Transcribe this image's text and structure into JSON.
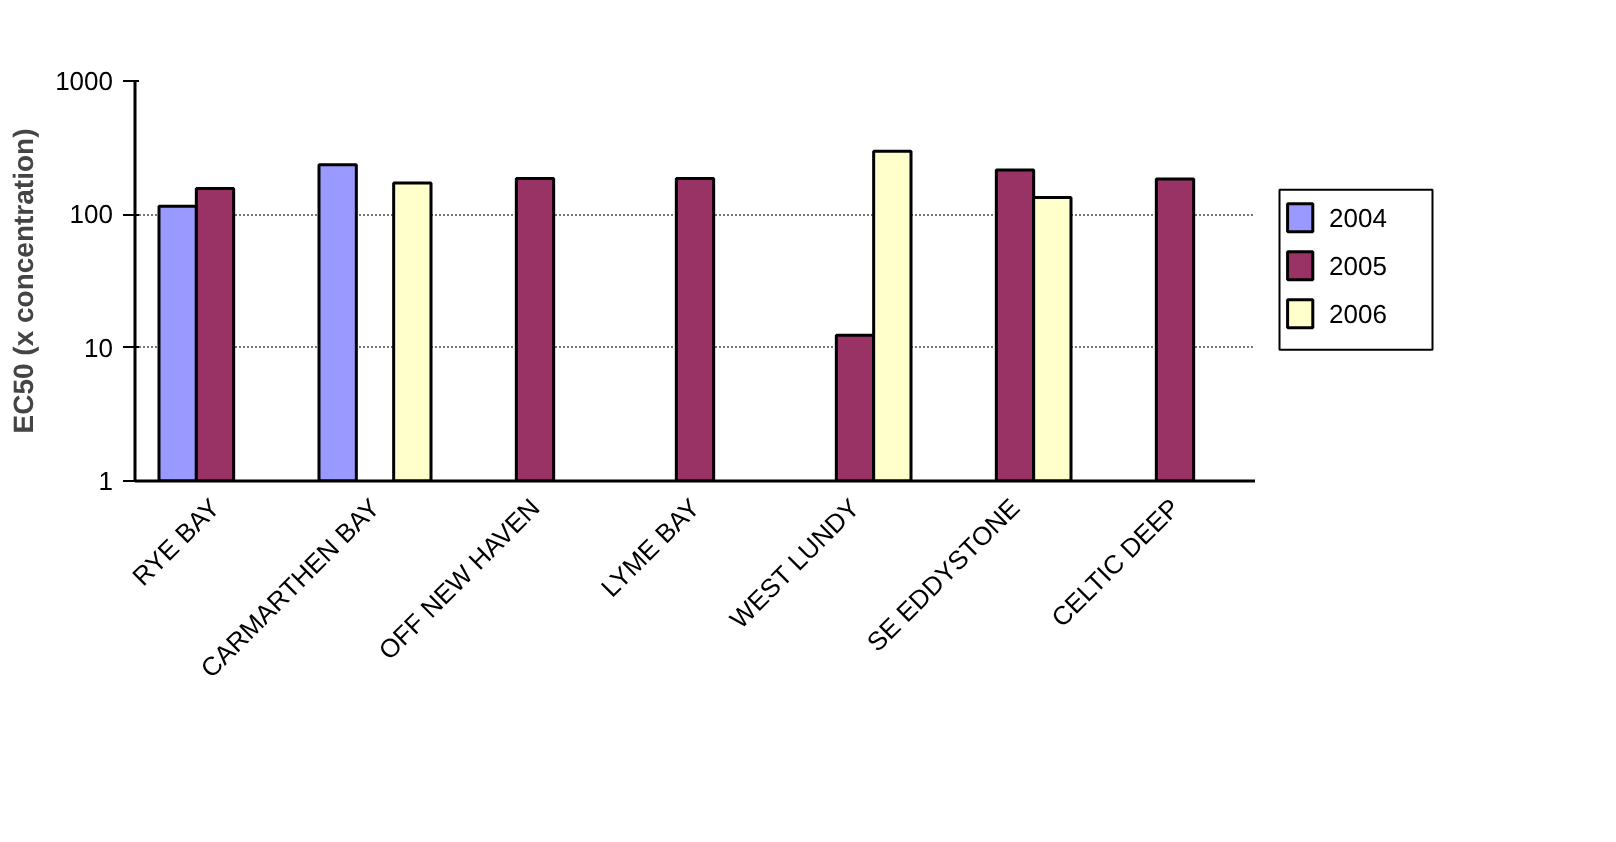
{
  "chart_data": {
    "type": "bar",
    "ylabel": "EC50 (x concentration)",
    "categories": [
      "RYE BAY",
      "CARMARTHEN BAY",
      "OFF NEW HAVEN",
      "LYME BAY",
      "WEST LUNDY",
      "SE EDDYSTONE",
      "CELTIC DEEP"
    ],
    "series": [
      {
        "name": "2004",
        "color": "#9999ff",
        "values": [
          115,
          235,
          null,
          null,
          null,
          null,
          null
        ]
      },
      {
        "name": "2005",
        "color": "#993366",
        "values": [
          156,
          null,
          186,
          186,
          12.4,
          215,
          184
        ]
      },
      {
        "name": "2006",
        "color": "#ffffcc",
        "values": [
          null,
          172,
          null,
          null,
          297,
          134,
          null
        ]
      }
    ],
    "log": true,
    "ylim": [
      1,
      1000
    ],
    "yticks": [
      1,
      10,
      100,
      1000
    ],
    "grid": "y",
    "legend": "right"
  }
}
